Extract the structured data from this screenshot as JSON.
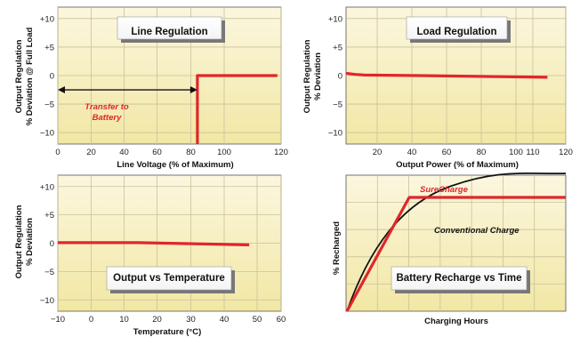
{
  "colors": {
    "plot_bg_top": "#fbf7df",
    "plot_bg_bottom": "#f2e7a4",
    "grid": "#c9c19a",
    "red_line": "#e0262a",
    "black_line": "#111111"
  },
  "chart_data": [
    {
      "type": "line",
      "title": "Line Regulation",
      "xlabel": "Line Voltage (% of Maximum)",
      "ylabel": [
        "Output Regulation",
        "% Deviation @ Full Load"
      ],
      "xlim": [
        0,
        120
      ],
      "ylim": [
        -12,
        12
      ],
      "x_ticks": [
        "0",
        "20",
        "40",
        "60",
        "80",
        "100",
        "120"
      ],
      "y_ticks": [
        "+10",
        "+5",
        "0",
        "−5",
        "−10"
      ],
      "grid": true,
      "series": [
        {
          "color": "#e0262a",
          "x": [
            75,
            75,
            118
          ],
          "y": [
            -12,
            0,
            0
          ]
        }
      ],
      "annotations": {
        "text_line1": "Transfer to",
        "text_line2": "Battery",
        "arrow_x": [
          0,
          75
        ],
        "arrow_y": -2.5
      }
    },
    {
      "type": "line",
      "title": "Load Regulation",
      "xlabel": "Output Power (% of Maximum)",
      "ylabel": [
        "Output Regulation",
        "% Deviation"
      ],
      "xlim": [
        0,
        120
      ],
      "ylim": [
        -12,
        12
      ],
      "x_ticks": [
        "20",
        "40",
        "60",
        "80",
        "100",
        "110",
        "120"
      ],
      "y_ticks": [
        "+10",
        "+5",
        "0",
        "−5",
        "−10"
      ],
      "grid": true,
      "series": [
        {
          "color": "#e0262a",
          "x": [
            0,
            5,
            10,
            40,
            110
          ],
          "y": [
            0.4,
            0.2,
            0.1,
            0.0,
            -0.3
          ]
        }
      ]
    },
    {
      "type": "line",
      "title": "Output vs Temperature",
      "xlabel": "Temperature (°C)",
      "ylabel": [
        "Output Regulation",
        "% Deviation"
      ],
      "xlim": [
        -10,
        60
      ],
      "ylim": [
        -12,
        12
      ],
      "x_ticks": [
        "−10",
        "0",
        "10",
        "20",
        "30",
        "40",
        "50",
        "60"
      ],
      "y_ticks": [
        "+10",
        "+5",
        "0",
        "−5",
        "−10"
      ],
      "grid": true,
      "series": [
        {
          "color": "#e0262a",
          "x": [
            -10,
            15,
            50
          ],
          "y": [
            0.1,
            0.1,
            -0.3
          ]
        }
      ]
    },
    {
      "type": "line",
      "title": "Battery Recharge vs Time",
      "xlabel": "Charging Hours",
      "ylabel": "% Recharged",
      "grid": true,
      "series": [
        {
          "name": "SureCharge",
          "color": "#e0262a"
        },
        {
          "name": "Conventional Charge",
          "color": "#111111"
        }
      ]
    }
  ]
}
